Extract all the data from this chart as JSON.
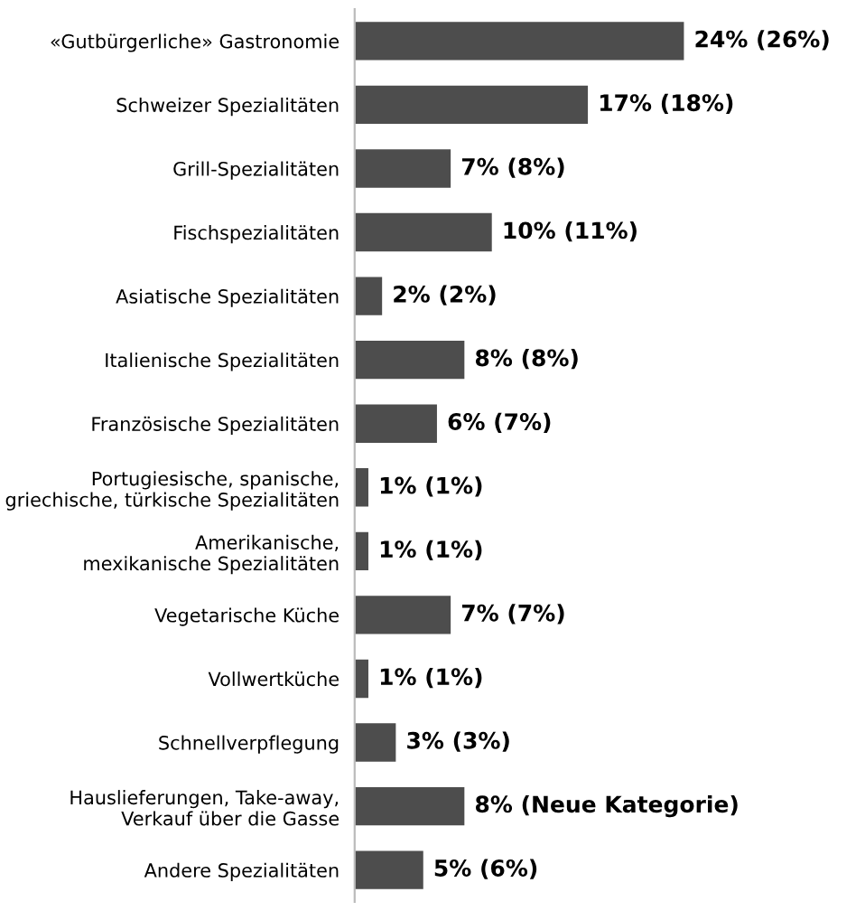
{
  "chart_data": {
    "type": "bar",
    "orientation": "horizontal",
    "categories": [
      "«Gutbürgerliche» Gastronomie",
      "Schweizer Spezialitäten",
      "Grill-Spezialitäten",
      "Fischspezialitäten",
      "Asiatische Spezialitäten",
      "Italienische Spezialitäten",
      "Französische Spezialitäten",
      "Portugiesische, spanische,\ngriechische, türkische Spezialitäten",
      "Amerikanische,\nmexikanische Spezialitäten",
      "Vegetarische Küche",
      "Vollwertküche",
      "Schnellverpflegung",
      "Hauslieferungen, Take-away,\nVerkauf über die Gasse",
      "Andere Spezialitäten"
    ],
    "values": [
      24,
      17,
      7,
      10,
      2,
      8,
      6,
      1,
      1,
      7,
      1,
      3,
      8,
      5
    ],
    "value_labels": [
      "24% (26%)",
      "17% (18%)",
      "7% (8%)",
      "10% (11%)",
      "2% (2%)",
      "8% (8%)",
      "6% (7%)",
      "1% (1%)",
      "1% (1%)",
      "7% (7%)",
      "1% (1%)",
      "3% (3%)",
      "8% (Neue Kategorie)",
      "5% (6%)"
    ],
    "color": "#4d4d4d"
  }
}
